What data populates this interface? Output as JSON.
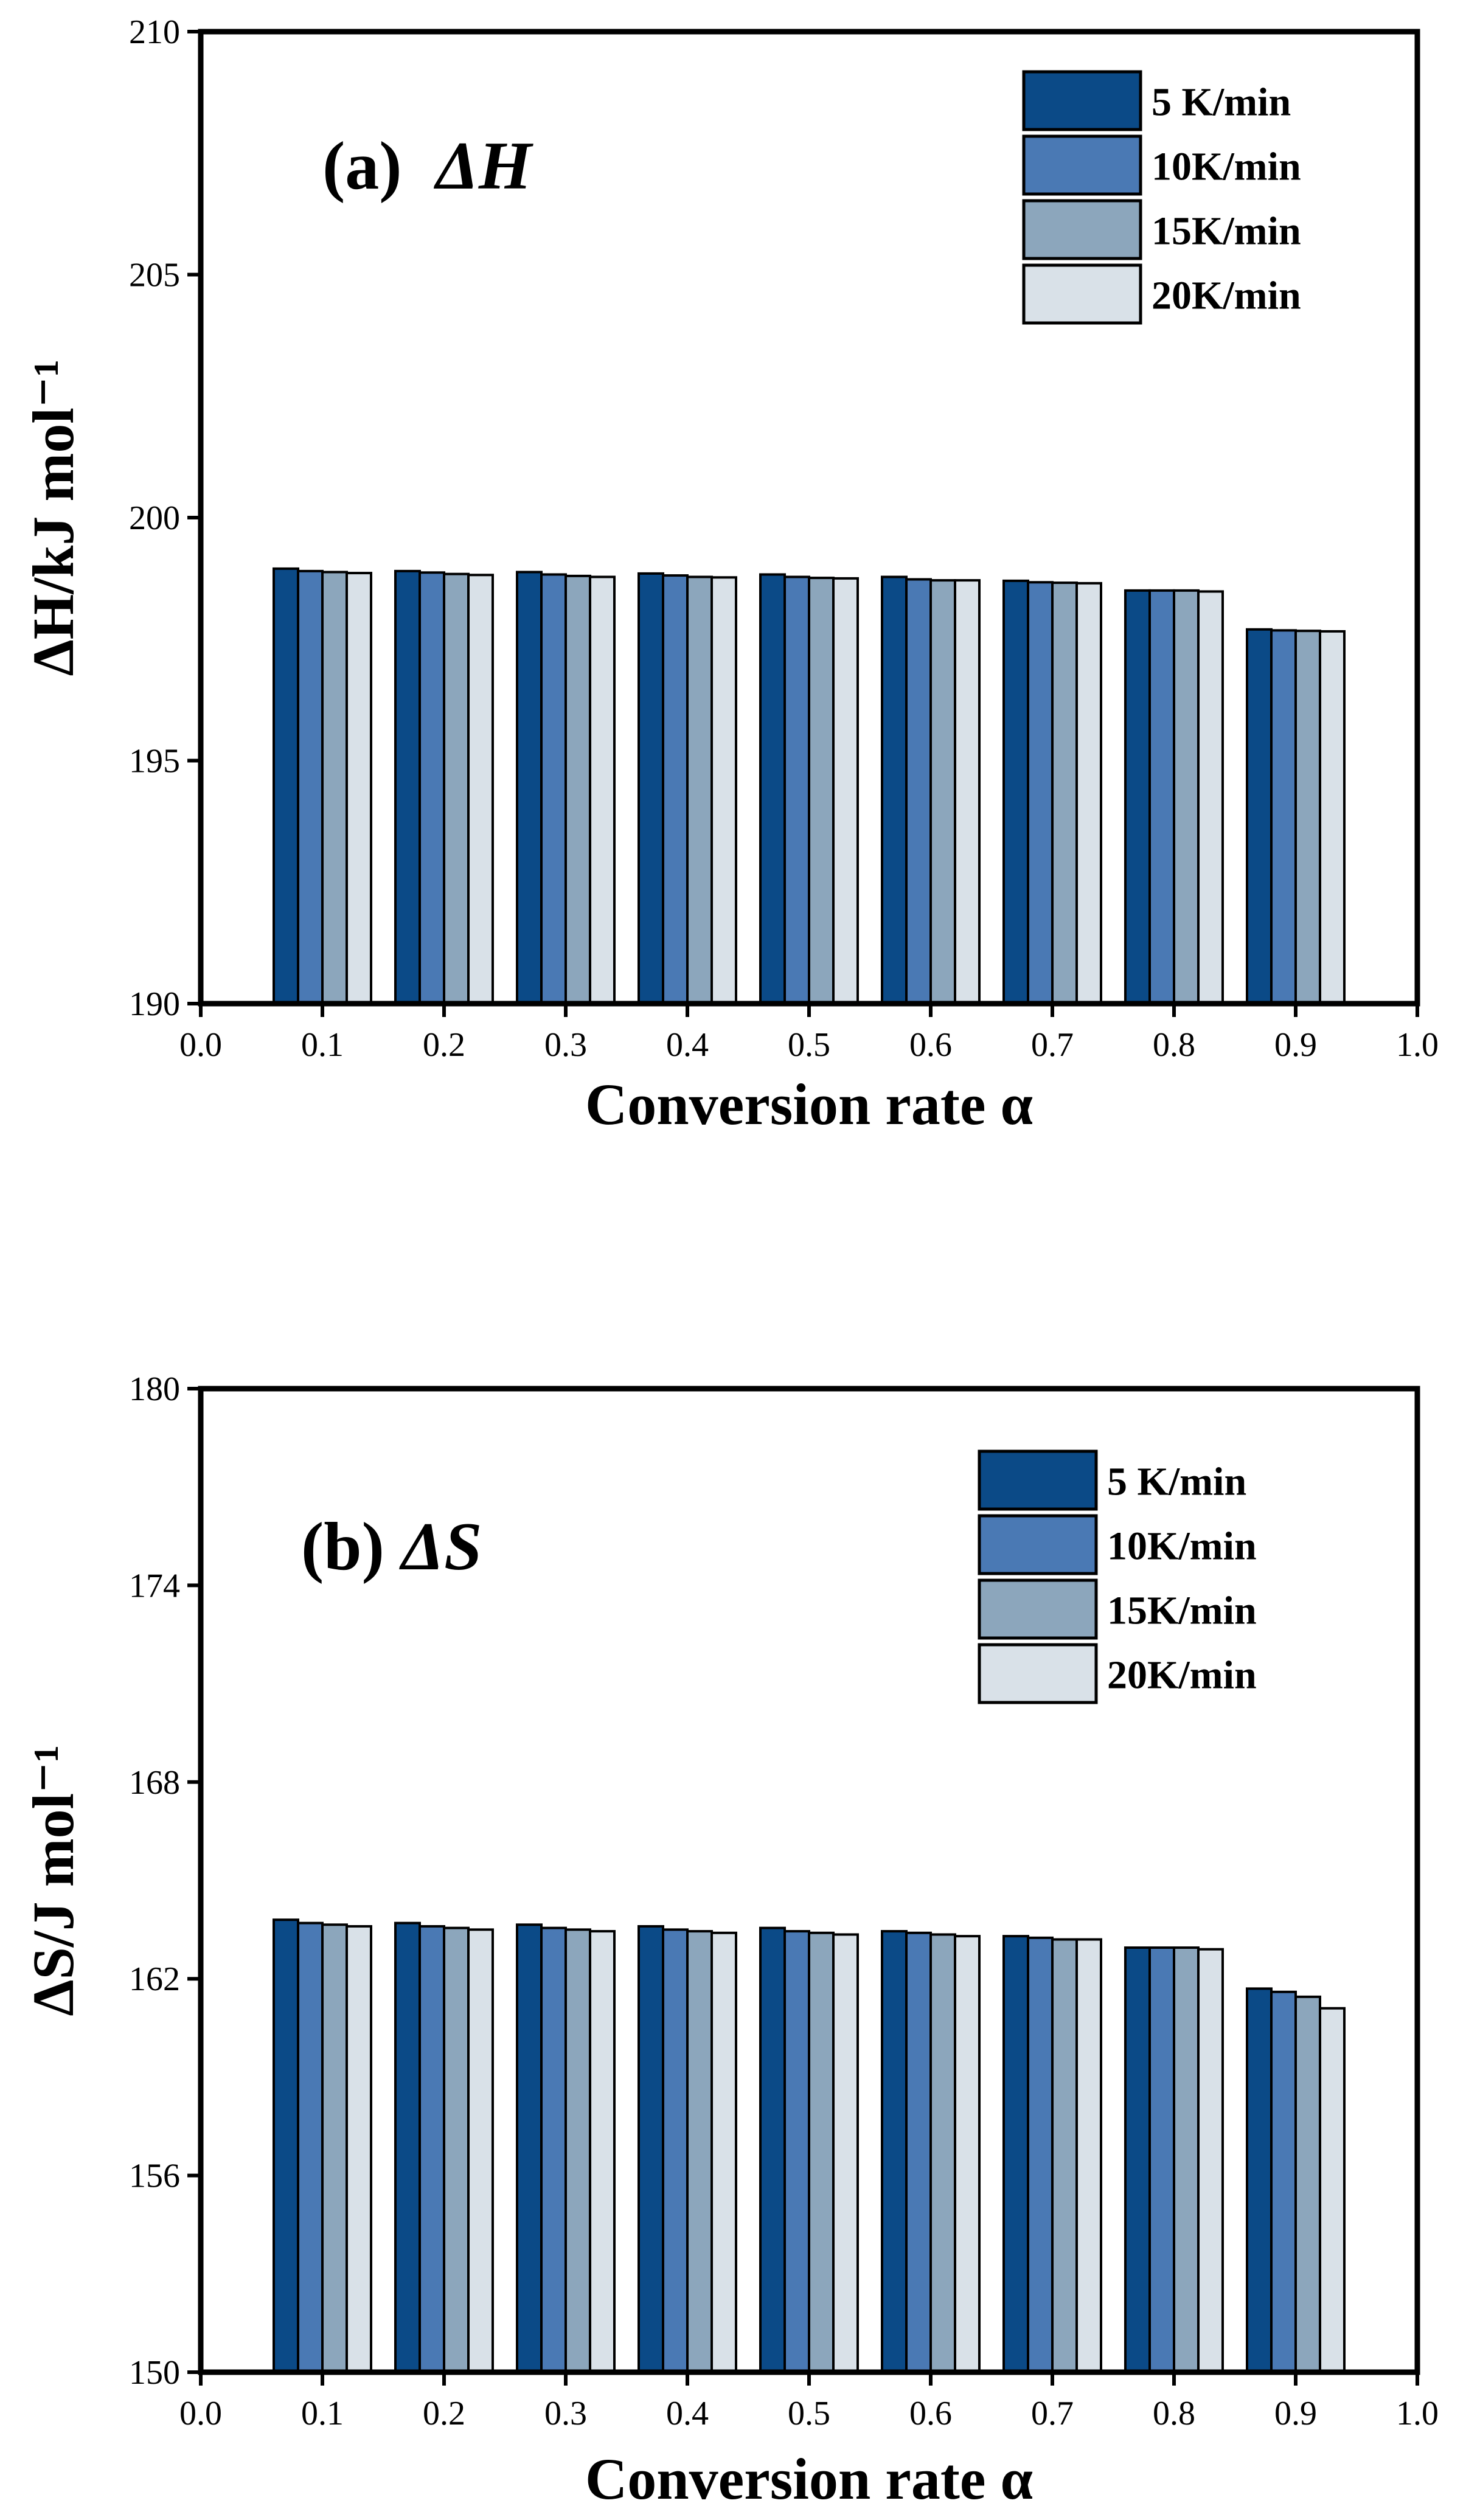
{
  "chart_data": [
    {
      "type": "bar",
      "panel_label": "(a)  ",
      "panel_symbol": "ΔH",
      "ylabel": "ΔH/kJ mol⁻¹",
      "xlabel": "Conversion rate α",
      "ylim": [
        190,
        210
      ],
      "yticks": [
        "190",
        "195",
        "200",
        "205",
        "210"
      ],
      "xlim": [
        0.0,
        1.0
      ],
      "xticks": [
        "0.0",
        "0.1",
        "0.2",
        "0.3",
        "0.4",
        "0.5",
        "0.6",
        "0.7",
        "0.8",
        "0.9",
        "1.0"
      ],
      "categories": [
        0.1,
        0.2,
        0.3,
        0.4,
        0.5,
        0.6,
        0.7,
        0.8,
        0.9
      ],
      "legend_position": "top-right",
      "series": [
        {
          "name": "5 K/min",
          "color": "#0b4a87",
          "values": [
            198.95,
            198.9,
            198.88,
            198.85,
            198.83,
            198.78,
            198.7,
            198.5,
            197.7
          ]
        },
        {
          "name": "10K/min",
          "color": "#4a79b4",
          "values": [
            198.9,
            198.87,
            198.83,
            198.81,
            198.78,
            198.73,
            198.67,
            198.5,
            197.68
          ]
        },
        {
          "name": "15K/min",
          "color": "#8ca6bc",
          "values": [
            198.88,
            198.84,
            198.8,
            198.78,
            198.76,
            198.71,
            198.66,
            198.5,
            197.67
          ]
        },
        {
          "name": "20K/min",
          "color": "#d9e1e8",
          "values": [
            198.86,
            198.82,
            198.78,
            198.77,
            198.75,
            198.71,
            198.65,
            198.48,
            197.66
          ]
        }
      ]
    },
    {
      "type": "bar",
      "panel_label": "(b) ",
      "panel_symbol": "ΔS",
      "ylabel": "ΔS/J mol⁻¹",
      "xlabel": "Conversion rate α",
      "ylim": [
        150,
        180
      ],
      "yticks": [
        "150",
        "156",
        "162",
        "168",
        "174",
        "180"
      ],
      "xlim": [
        0.0,
        1.0
      ],
      "xticks": [
        "0.0",
        "0.1",
        "0.2",
        "0.3",
        "0.4",
        "0.5",
        "0.6",
        "0.7",
        "0.8",
        "0.9",
        "1.0"
      ],
      "categories": [
        0.1,
        0.2,
        0.3,
        0.4,
        0.5,
        0.6,
        0.7,
        0.8,
        0.9
      ],
      "legend_position": "top-right",
      "series": [
        {
          "name": "5 K/min",
          "color": "#0b4a87",
          "values": [
            163.8,
            163.7,
            163.65,
            163.6,
            163.55,
            163.45,
            163.3,
            162.95,
            161.7
          ]
        },
        {
          "name": "10K/min",
          "color": "#4a79b4",
          "values": [
            163.7,
            163.6,
            163.55,
            163.5,
            163.45,
            163.4,
            163.25,
            162.95,
            161.6
          ]
        },
        {
          "name": "15K/min",
          "color": "#8ca6bc",
          "values": [
            163.65,
            163.55,
            163.5,
            163.45,
            163.4,
            163.35,
            163.2,
            162.95,
            161.45
          ]
        },
        {
          "name": "20K/min",
          "color": "#d9e1e8",
          "values": [
            163.6,
            163.5,
            163.45,
            163.4,
            163.35,
            163.3,
            163.2,
            162.9,
            161.1
          ]
        }
      ]
    }
  ]
}
